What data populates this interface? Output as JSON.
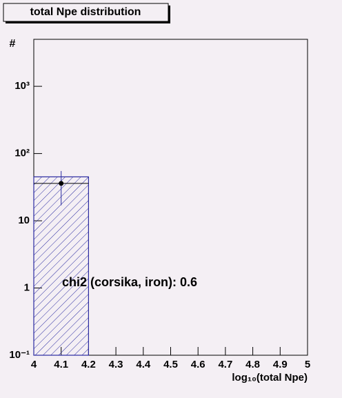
{
  "chart_data": {
    "type": "histogram",
    "title": "total Npe distribution",
    "x_label": "log₁₀(total Npe)",
    "y_label": "#",
    "annotation": "chi2 (corsika, iron): 0.6",
    "bins": [
      4.0,
      4.2
    ],
    "counts": [
      45
    ],
    "color": "#2a2aa0",
    "points": {
      "x": [
        4.1
      ],
      "values": [
        36
      ],
      "errors": [
        19
      ],
      "color": "#000000"
    },
    "xlim": [
      4,
      5
    ],
    "xticks": [
      4,
      4.1,
      4.2,
      4.3,
      4.4,
      4.5,
      4.6,
      4.7,
      4.8,
      4.9,
      5
    ],
    "ylim": [
      0.1,
      5000
    ],
    "log_y": true,
    "yticks": [
      {
        "value": 0.1,
        "label": "10⁻¹"
      },
      1,
      10,
      {
        "value": 100,
        "label": "10²"
      },
      {
        "value": 1000,
        "label": "10³"
      }
    ]
  }
}
